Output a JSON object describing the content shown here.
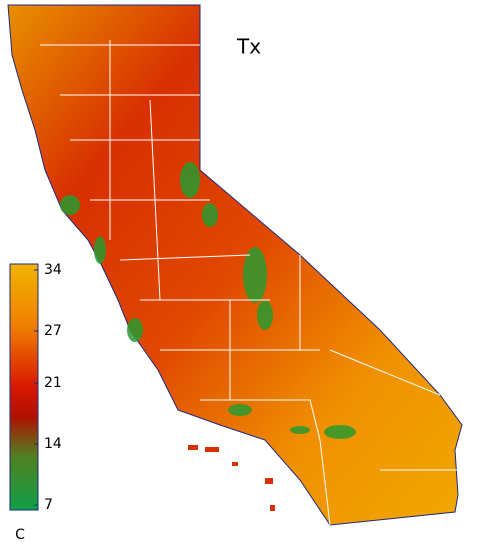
{
  "title": "Tx",
  "colorbar": {
    "ticks": [
      34,
      27,
      21,
      14,
      7
    ],
    "unit": "C"
  }
}
